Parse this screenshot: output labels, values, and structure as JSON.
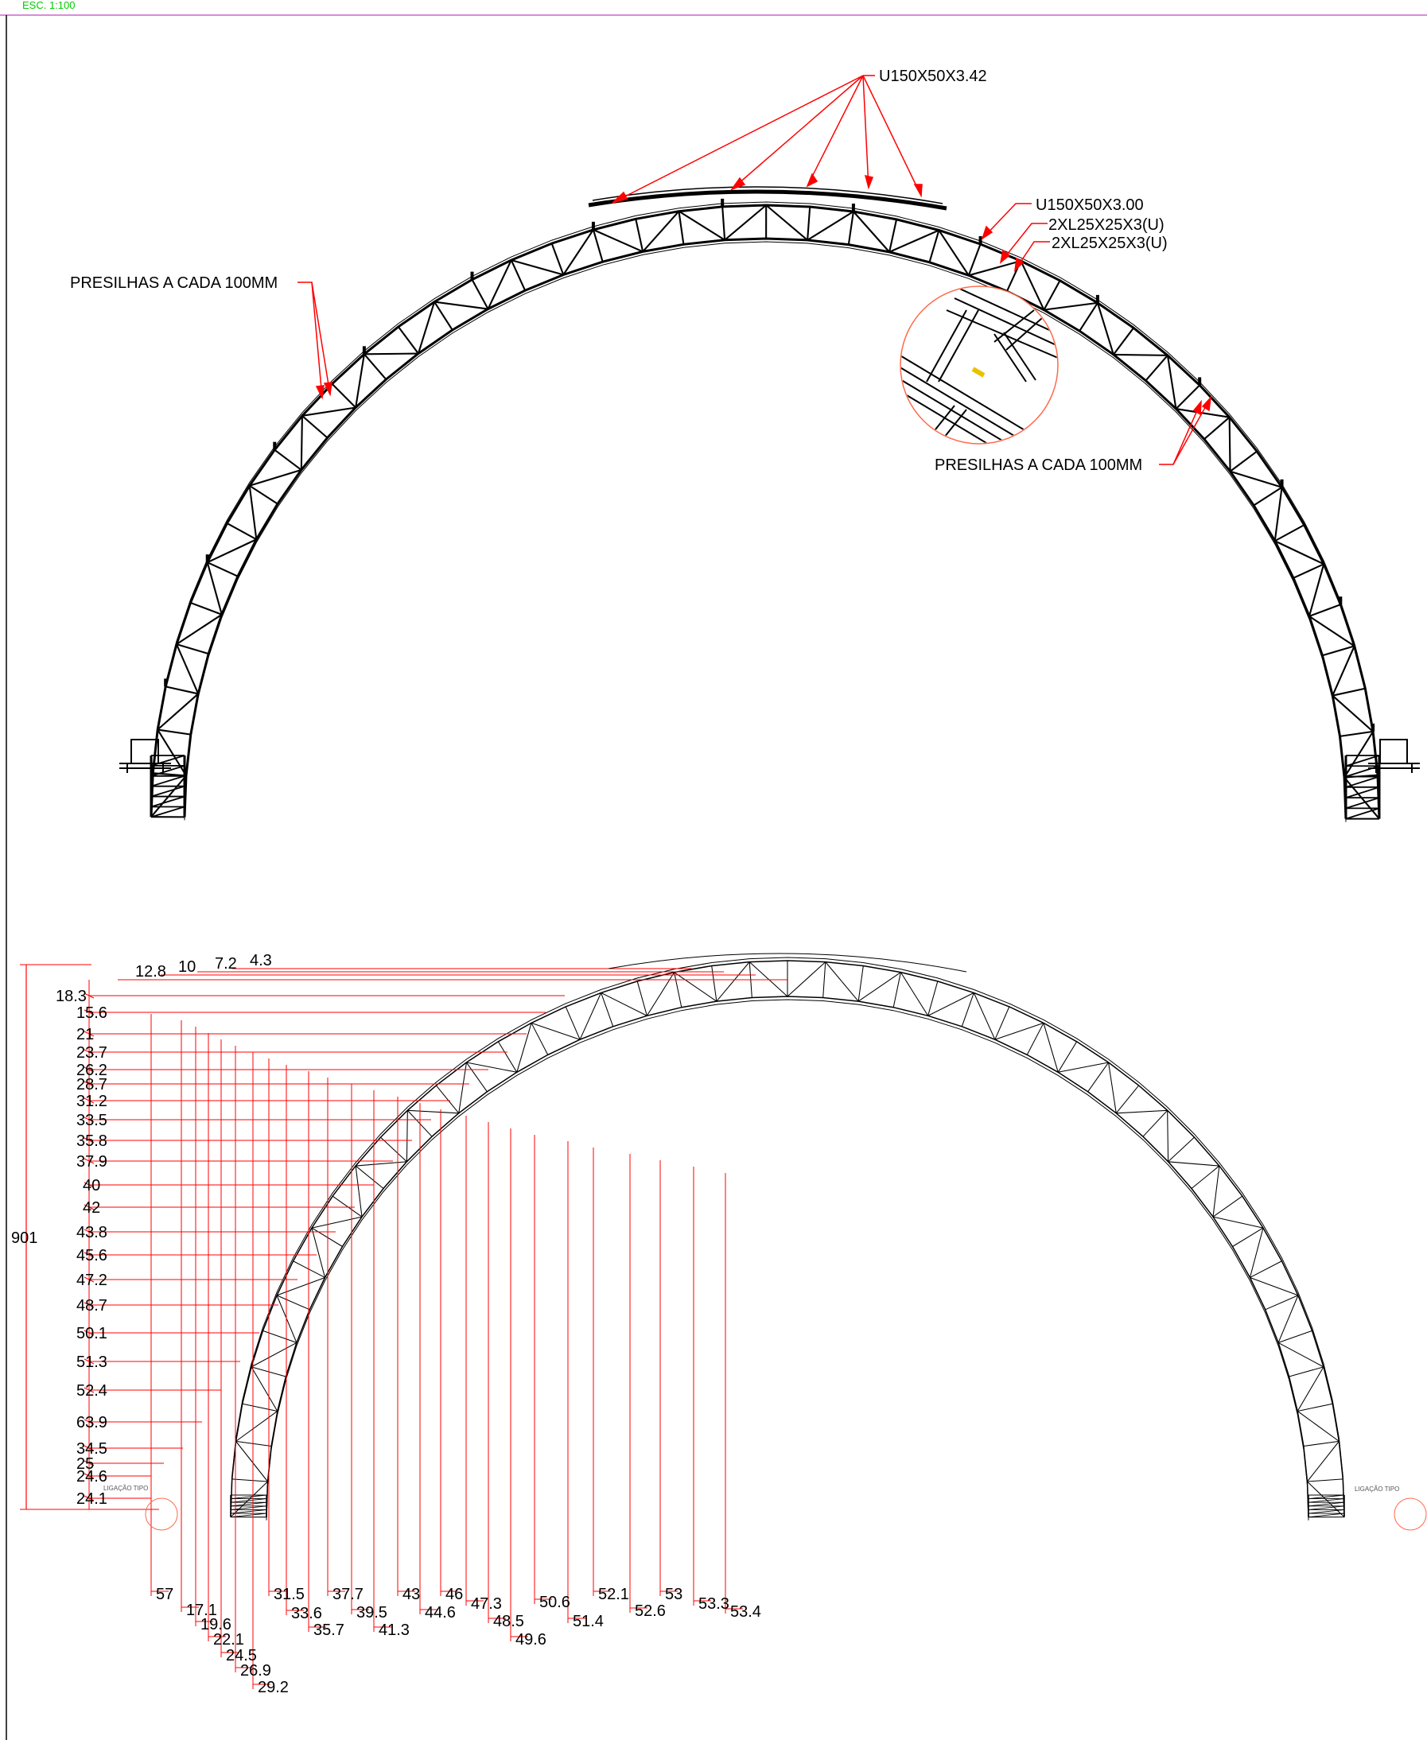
{
  "sheet": {
    "scale_label": "ESC. 1:100"
  },
  "elevation": {
    "labels": {
      "purlin": "U150X50X3.42",
      "chord": "U150X50X3.00",
      "diagonal_a": "2XL25X25X3(U)",
      "diagonal_b": "2XL25X25X3(U)",
      "clips_left": "PRESILHAS A CADA 100MM",
      "clips_right": "PRESILHAS A CADA 100MM"
    }
  },
  "dimensioned": {
    "overall_height": "901",
    "connection_left": "LIGAÇÃO TIPO",
    "connection_right": "LIGAÇÃO TIPO",
    "top_offsets": [
      "12.8",
      "10",
      "7.2",
      "4.3"
    ],
    "vertical_intervals": [
      "18.3",
      "15.6",
      "21",
      "23.7",
      "26.2",
      "28.7",
      "31.2",
      "33.5",
      "35.8",
      "37.9",
      "40",
      "42",
      "43.8",
      "45.6",
      "47.2",
      "48.7",
      "50.1",
      "51.3",
      "52.4",
      "63.9",
      "34.5",
      "25",
      "24.6",
      "24.1"
    ],
    "horizontal_intervals": [
      "57",
      "17.1",
      "19.6",
      "22.1",
      "24.5",
      "26.9",
      "29.2",
      "31.5",
      "33.6",
      "35.7",
      "37.7",
      "39.5",
      "41.3",
      "43",
      "44.6",
      "46",
      "47.3",
      "48.5",
      "49.6",
      "50.6",
      "51.4",
      "52.1",
      "52.6",
      "53",
      "53.3",
      "53.4"
    ]
  },
  "colors": {
    "structure": "#000000",
    "leader": "#ff0000",
    "header_text": "#00cc00",
    "header_line": "#cc66cc",
    "detail_circle": "#ff6a4a"
  }
}
